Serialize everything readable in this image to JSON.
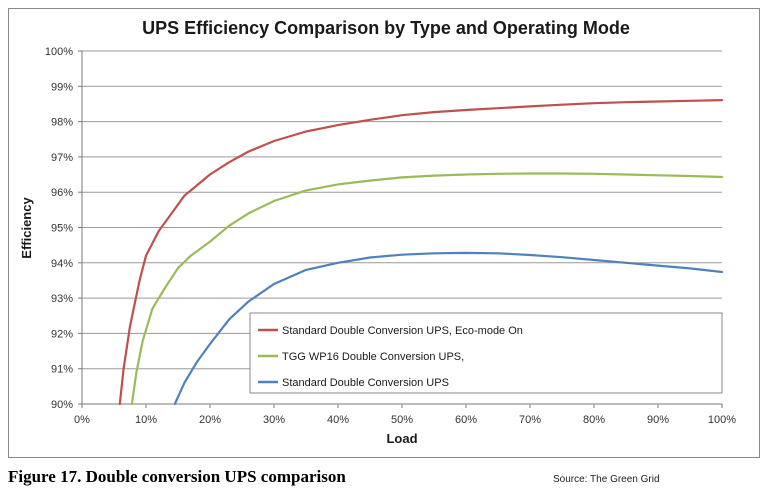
{
  "chart_data": {
    "type": "line",
    "title": "UPS Efficiency Comparison by Type and Operating Mode",
    "xlabel": "Load",
    "ylabel": "Efficiency",
    "xlim": [
      0,
      100
    ],
    "ylim": [
      90,
      100
    ],
    "x_ticks": [
      "0%",
      "10%",
      "20%",
      "30%",
      "40%",
      "50%",
      "60%",
      "70%",
      "80%",
      "90%",
      "100%"
    ],
    "y_ticks": [
      "90%",
      "91%",
      "92%",
      "93%",
      "94%",
      "95%",
      "96%",
      "97%",
      "98%",
      "99%",
      "100%"
    ],
    "grid": true,
    "legend_position": "bottom-right",
    "series": [
      {
        "name": "Standard Double Conversion UPS, Eco-mode On",
        "color": "#c0504d",
        "x": [
          5.9,
          6.5,
          7.5,
          9,
          10,
          12,
          14,
          16,
          18,
          20,
          23,
          26,
          30,
          35,
          40,
          45,
          50,
          55,
          60,
          65,
          70,
          75,
          80,
          85,
          90,
          95,
          100
        ],
        "y": [
          90.0,
          91.0,
          92.2,
          93.5,
          94.2,
          94.9,
          95.4,
          95.9,
          96.2,
          96.5,
          96.85,
          97.15,
          97.45,
          97.72,
          97.9,
          98.05,
          98.18,
          98.27,
          98.33,
          98.38,
          98.43,
          98.48,
          98.52,
          98.55,
          98.57,
          98.59,
          98.61
        ]
      },
      {
        "name": "TGG WP16 Double Conversion UPS,",
        "color": "#9bbb59",
        "x": [
          7.8,
          8.5,
          9.5,
          11,
          13,
          15,
          17,
          20,
          23,
          26,
          30,
          35,
          40,
          45,
          50,
          55,
          60,
          65,
          70,
          75,
          80,
          85,
          90,
          95,
          100
        ],
        "y": [
          90.0,
          90.9,
          91.8,
          92.7,
          93.3,
          93.85,
          94.2,
          94.6,
          95.05,
          95.4,
          95.75,
          96.05,
          96.22,
          96.33,
          96.42,
          96.47,
          96.5,
          96.52,
          96.53,
          96.53,
          96.52,
          96.5,
          96.48,
          96.46,
          96.43
        ]
      },
      {
        "name": "Standard Double Conversion UPS",
        "color": "#4f81bd",
        "x": [
          14.5,
          16,
          18,
          20,
          23,
          26,
          30,
          35,
          40,
          45,
          50,
          55,
          60,
          65,
          70,
          75,
          80,
          85,
          90,
          95,
          100
        ],
        "y": [
          90.0,
          90.6,
          91.2,
          91.7,
          92.4,
          92.9,
          93.4,
          93.8,
          94.0,
          94.15,
          94.23,
          94.27,
          94.28,
          94.27,
          94.22,
          94.16,
          94.08,
          94.0,
          93.92,
          93.84,
          93.74
        ]
      }
    ]
  },
  "caption": "Figure 17. Double conversion UPS comparison",
  "source": "Source: The Green Grid"
}
